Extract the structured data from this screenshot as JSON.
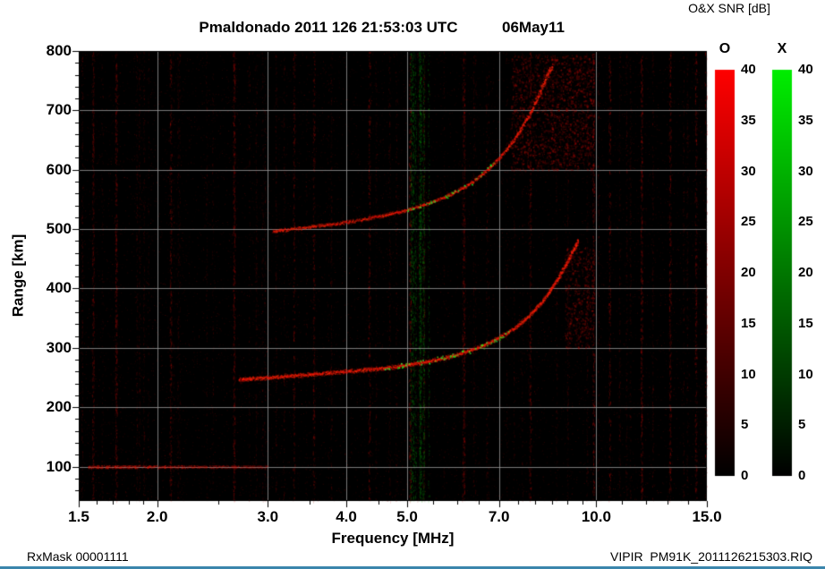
{
  "header": {
    "title": "Pmaldonado 2011 126 21:53:03 UTC",
    "date": "06May11",
    "colorbar_title": "O&X SNR [dB]"
  },
  "footer": {
    "rx_mask": "RxMask 00001111",
    "file": "VIPIR  PM91K_2011126215303.RIQ"
  },
  "chart_data": {
    "type": "heatmap",
    "title": "Pmaldonado 2011 126 21:53:03 UTC  06May11",
    "subtitle": "O&X SNR [dB]",
    "xlabel": "Frequency [MHz]",
    "ylabel": "Range [km]",
    "x_scale": "log",
    "xlim": [
      1.5,
      15.0
    ],
    "ylim": [
      42,
      800
    ],
    "x_ticks": [
      1.5,
      2.0,
      3.0,
      4.0,
      5.0,
      7.0,
      10.0,
      15.0
    ],
    "x_tick_labels": [
      "1.5",
      "2.0",
      "3.0",
      "4.0",
      "5.0",
      "7.0",
      "10.0",
      "15.0"
    ],
    "x_minor_ticks": [
      1.6,
      1.7,
      1.8,
      1.9,
      2.5,
      3.5,
      4.5,
      5.5,
      6.0,
      6.5,
      7.5,
      8.0,
      8.5,
      9.0,
      9.5,
      11.0,
      12.0,
      13.0,
      14.0
    ],
    "y_ticks": [
      100,
      200,
      300,
      400,
      500,
      600,
      700,
      800
    ],
    "y_minor_step": 20,
    "grid": true,
    "legend_position": "right",
    "background_color": "#000000",
    "grid_color": "#999999",
    "colorbars": [
      {
        "label": "O",
        "color": "#ff0000",
        "min": 0,
        "max": 40,
        "ticks": [
          0,
          5,
          10,
          15,
          20,
          25,
          30,
          35,
          40
        ]
      },
      {
        "label": "X",
        "color": "#00ee00",
        "min": 0,
        "max": 40,
        "ticks": [
          0,
          5,
          10,
          15,
          20,
          25,
          30,
          35,
          40
        ]
      }
    ],
    "traces": [
      {
        "name": "F-layer echo, first hop (O-mode, red)",
        "color": "#ee1408",
        "critical_frequency_mhz": 9.4,
        "points_mhz_km": [
          [
            2.7,
            247
          ],
          [
            3.0,
            251
          ],
          [
            3.4,
            255
          ],
          [
            3.8,
            259
          ],
          [
            4.2,
            263
          ],
          [
            4.6,
            267
          ],
          [
            5.0,
            272
          ],
          [
            5.4,
            278
          ],
          [
            5.8,
            285
          ],
          [
            6.2,
            294
          ],
          [
            6.6,
            305
          ],
          [
            7.0,
            318
          ],
          [
            7.4,
            334
          ],
          [
            7.8,
            354
          ],
          [
            8.2,
            379
          ],
          [
            8.6,
            410
          ],
          [
            8.9,
            438
          ],
          [
            9.1,
            458
          ],
          [
            9.25,
            472
          ],
          [
            9.35,
            482
          ]
        ]
      },
      {
        "name": "F-layer echo, second hop (O-mode, red)",
        "color": "#cc1008",
        "points_mhz_km": [
          [
            3.05,
            497
          ],
          [
            3.4,
            503
          ],
          [
            3.8,
            509
          ],
          [
            4.2,
            516
          ],
          [
            4.6,
            524
          ],
          [
            5.0,
            533
          ],
          [
            5.4,
            544
          ],
          [
            5.8,
            557
          ],
          [
            6.2,
            573
          ],
          [
            6.6,
            594
          ],
          [
            7.0,
            620
          ],
          [
            7.4,
            652
          ],
          [
            7.8,
            692
          ],
          [
            8.1,
            728
          ],
          [
            8.3,
            755
          ],
          [
            8.5,
            775
          ]
        ]
      }
    ],
    "x_mode_echoes": {
      "color": "#22cc22",
      "hop1_range_mhz": [
        4.6,
        7.3
      ],
      "hop2_range_mhz": [
        5.0,
        6.9
      ]
    },
    "noise": {
      "description": "sparse red speckle noise and vertical RFI stripes on black background",
      "rfi_columns_mhz": [
        1.58,
        1.72,
        2.1,
        2.65,
        3.3,
        3.55,
        4.35,
        5.05,
        6.15,
        7.85,
        9.9,
        10.5,
        11.8,
        13.1,
        14.4,
        14.95
      ],
      "green_band_mhz": [
        5.0,
        5.45
      ],
      "e_region_line_km": 100,
      "e_region_line_mhz": [
        1.55,
        3.0
      ],
      "spread_echo_regions": [
        {
          "f_mhz": [
            7.3,
            9.9
          ],
          "range_km": [
            600,
            795
          ]
        },
        {
          "f_mhz": [
            8.9,
            9.9
          ],
          "range_km": [
            300,
            470
          ]
        }
      ]
    }
  }
}
